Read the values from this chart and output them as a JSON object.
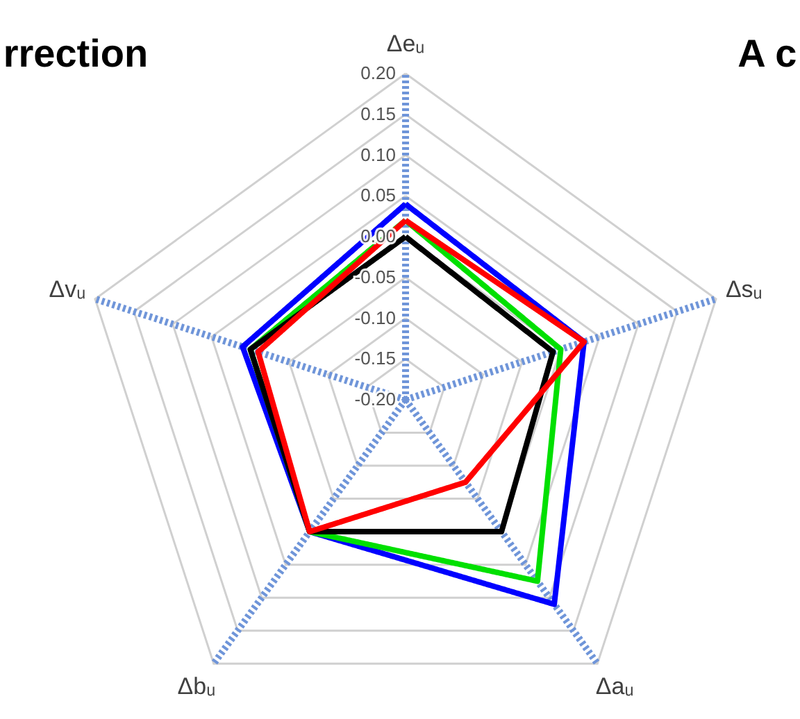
{
  "chart_data": {
    "type": "radar",
    "categories": [
      "Δeᵤ",
      "Δsᵤ",
      "Δaᵤ",
      "Δbᵤ",
      "Δvᵤ"
    ],
    "series": [
      {
        "color": "#0000ff",
        "values": [
          0.04,
          0.03,
          0.11,
          0.0,
          0.01
        ]
      },
      {
        "color": "#00e000",
        "values": [
          0.02,
          0.0,
          0.075,
          0.0,
          0.0
        ]
      },
      {
        "color": "#000000",
        "values": [
          0.0,
          -0.01,
          0.0,
          0.0,
          0.0
        ]
      },
      {
        "color": "#ff0000",
        "values": [
          0.02,
          0.03,
          -0.075,
          0.0,
          -0.01
        ]
      }
    ],
    "ylim": [
      -0.2,
      0.2
    ],
    "yticks": [
      {
        "value": -0.2,
        "label": "-0.20"
      },
      {
        "value": -0.15,
        "label": "-0.15"
      },
      {
        "value": -0.1,
        "label": "-0.10"
      },
      {
        "value": -0.05,
        "label": "-0.05"
      },
      {
        "value": 0.0,
        "label": "0.00"
      },
      {
        "value": 0.05,
        "label": "0.05"
      },
      {
        "value": 0.1,
        "label": "0.10"
      },
      {
        "value": 0.15,
        "label": "0.15"
      },
      {
        "value": 0.2,
        "label": "0.20"
      }
    ],
    "grid": true,
    "line_style": "solid",
    "annotations": [
      "rrection",
      "A c"
    ]
  }
}
